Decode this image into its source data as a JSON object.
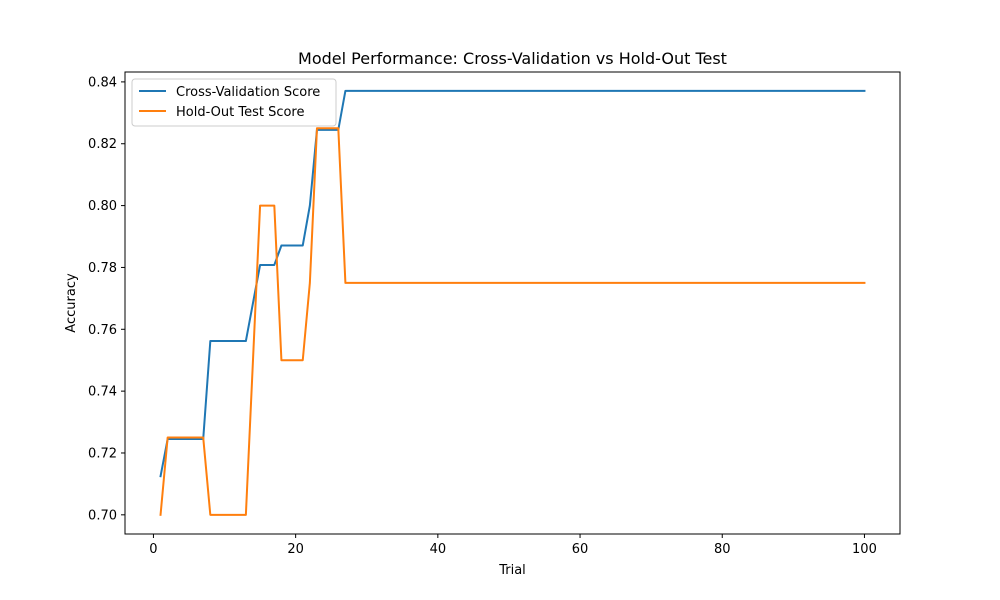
{
  "chart_data": {
    "type": "line",
    "title": "Model Performance: Cross-Validation vs Hold-Out Test",
    "xlabel": "Trial",
    "ylabel": "Accuracy",
    "xlim": [
      -4,
      105
    ],
    "ylim": [
      0.6938,
      0.8432
    ],
    "xticks": [
      0,
      20,
      40,
      60,
      80,
      100
    ],
    "xtick_labels": [
      "0",
      "20",
      "40",
      "60",
      "80",
      "100"
    ],
    "yticks": [
      0.7,
      0.72,
      0.74,
      0.76,
      0.78,
      0.8,
      0.82,
      0.84
    ],
    "ytick_labels": [
      "0.70",
      "0.72",
      "0.74",
      "0.76",
      "0.78",
      "0.80",
      "0.82",
      "0.84"
    ],
    "grid": false,
    "legend_position": "upper-left",
    "series": [
      {
        "name": "Cross-Validation Score",
        "color": "#1f77b4",
        "x": [
          1,
          2,
          7,
          8,
          13,
          15,
          17,
          18,
          21,
          22,
          23,
          26,
          27,
          100
        ],
        "y": [
          0.7125,
          0.7245,
          0.7245,
          0.7562,
          0.7562,
          0.7808,
          0.7808,
          0.7871,
          0.7871,
          0.8,
          0.8245,
          0.8245,
          0.8371,
          0.8371
        ]
      },
      {
        "name": "Hold-Out Test Score",
        "color": "#ff7f0e",
        "x": [
          1,
          2,
          7,
          8,
          13,
          15,
          17,
          18,
          21,
          22,
          23,
          26,
          27,
          100
        ],
        "y": [
          0.7,
          0.725,
          0.725,
          0.7,
          0.7,
          0.8,
          0.8,
          0.75,
          0.75,
          0.775,
          0.825,
          0.825,
          0.775,
          0.775
        ]
      }
    ]
  }
}
